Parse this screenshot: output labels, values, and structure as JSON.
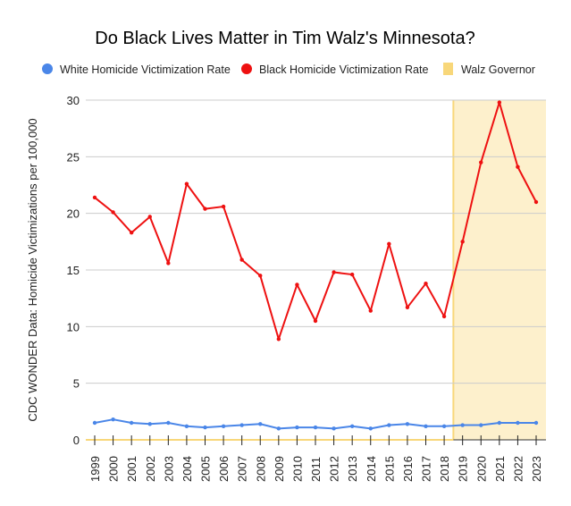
{
  "chart_data": {
    "type": "line",
    "title": "Do Black Lives Matter in Tim Walz's Minnesota?",
    "xlabel": "",
    "ylabel": "CDC WONDER Data: Homicide Victimizations per 100,000",
    "ylim": [
      0,
      30
    ],
    "yticks": [
      0,
      5,
      10,
      15,
      20,
      25,
      30
    ],
    "grid": true,
    "legend_position": "top",
    "x": [
      "1999",
      "2000",
      "2001",
      "2002",
      "2003",
      "2004",
      "2005",
      "2006",
      "2007",
      "2008",
      "2009",
      "2010",
      "2011",
      "2012",
      "2013",
      "2014",
      "2015",
      "2016",
      "2017",
      "2018",
      "2019",
      "2020",
      "2021",
      "2022",
      "2023"
    ],
    "series": [
      {
        "name": "White Homicide Victimization Rate",
        "color": "#4a86e8",
        "values": [
          1.5,
          1.8,
          1.5,
          1.4,
          1.5,
          1.2,
          1.1,
          1.2,
          1.3,
          1.4,
          1.0,
          1.1,
          1.1,
          1.0,
          1.2,
          1.0,
          1.3,
          1.4,
          1.2,
          1.2,
          1.3,
          1.3,
          1.5,
          1.5,
          1.5
        ]
      },
      {
        "name": "Black Homicide Victimization Rate",
        "color": "#ee1111",
        "values": [
          21.4,
          20.1,
          18.3,
          19.7,
          15.6,
          22.6,
          20.4,
          20.6,
          15.9,
          14.5,
          8.9,
          13.7,
          10.5,
          14.8,
          14.6,
          11.4,
          17.3,
          11.7,
          13.8,
          10.9,
          17.5,
          24.5,
          29.8,
          24.1,
          21.0
        ]
      }
    ],
    "shaded_region": {
      "name": "Walz Governor",
      "color": "#fdf0cc",
      "border_color": "#f8d77a",
      "start": "2018.5",
      "end": "2023"
    }
  }
}
